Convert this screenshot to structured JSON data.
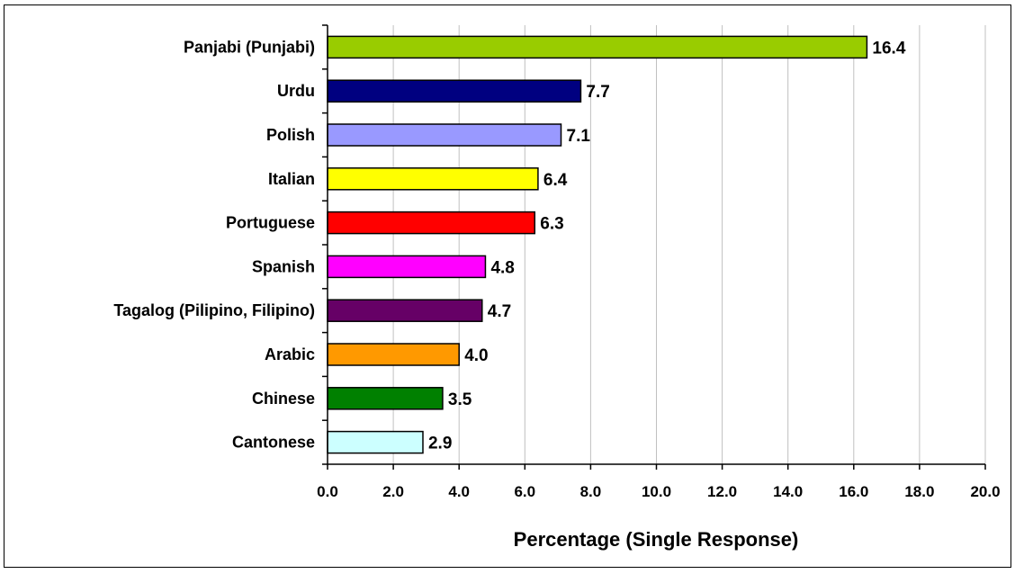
{
  "chart_data": {
    "type": "bar",
    "orientation": "horizontal",
    "categories": [
      "Panjabi (Punjabi)",
      "Urdu",
      "Polish",
      "Italian",
      "Portuguese",
      "Spanish",
      "Tagalog (Pilipino, Filipino)",
      "Arabic",
      "Chinese",
      "Cantonese"
    ],
    "values": [
      16.4,
      7.7,
      7.1,
      6.4,
      6.3,
      4.8,
      4.7,
      4.0,
      3.5,
      2.9
    ],
    "value_labels": [
      "16.4",
      "7.7",
      "7.1",
      "6.4",
      "6.3",
      "4.8",
      "4.7",
      "4.0",
      "3.5",
      "2.9"
    ],
    "colors": [
      "#99CC00",
      "#000080",
      "#9999FF",
      "#FFFF00",
      "#FF0000",
      "#FF00FF",
      "#660066",
      "#FF9900",
      "#008000",
      "#CCFFFF"
    ],
    "xlabel": "Percentage (Single Response)",
    "ylabel": "",
    "title": "",
    "xlim": [
      0,
      20
    ],
    "xticks": [
      0,
      2,
      4,
      6,
      8,
      10,
      12,
      14,
      16,
      18,
      20
    ],
    "xtick_labels": [
      "0.0",
      "2.0",
      "4.0",
      "6.0",
      "8.0",
      "10.0",
      "12.0",
      "14.0",
      "16.0",
      "18.0",
      "20.0"
    ],
    "grid": "vertical gridlines",
    "gridline_color": "#c0c0c0",
    "legend": "none"
  }
}
